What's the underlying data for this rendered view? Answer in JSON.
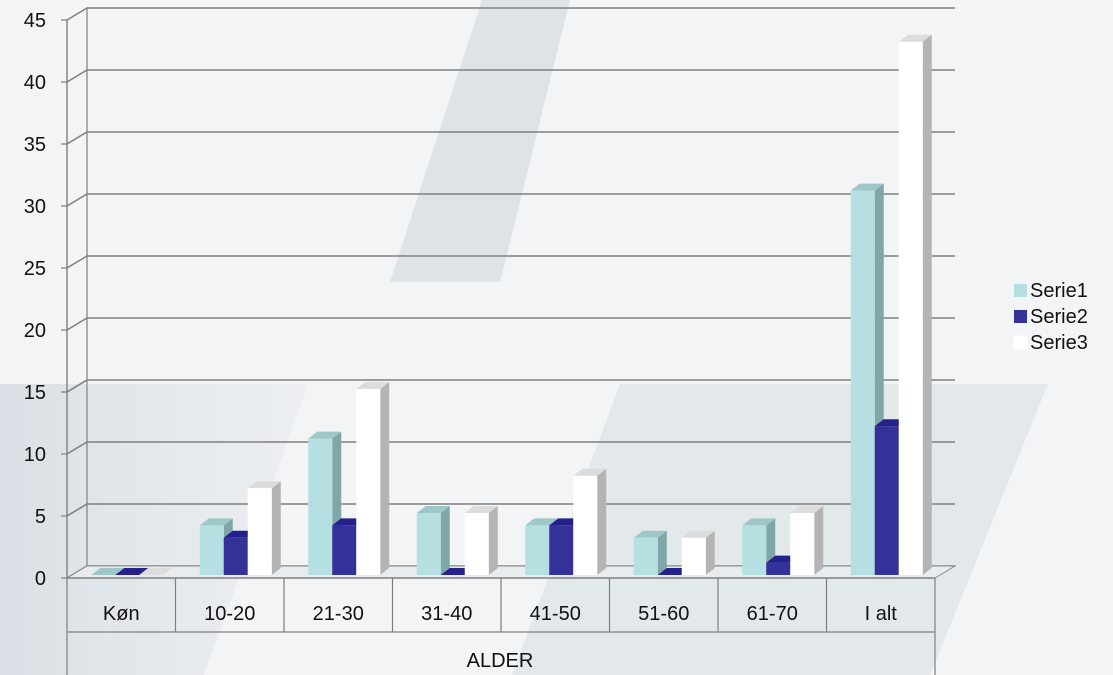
{
  "chart_data": {
    "type": "bar",
    "title": "",
    "xlabel": "ALDER",
    "ylabel": "",
    "ylim": [
      0,
      45
    ],
    "yticks": [
      0,
      5,
      10,
      15,
      20,
      25,
      30,
      35,
      40,
      45
    ],
    "categories": [
      "Køn",
      "10-20",
      "21-30",
      "31-40",
      "41-50",
      "51-60",
      "61-70",
      "I alt"
    ],
    "series": [
      {
        "name": "Serie1",
        "values": [
          0,
          4,
          11,
          5,
          4,
          3,
          4,
          31
        ]
      },
      {
        "name": "Serie2",
        "values": [
          0,
          3,
          4,
          0,
          4,
          0,
          1,
          12
        ]
      },
      {
        "name": "Serie3",
        "values": [
          0,
          7,
          15,
          5,
          8,
          3,
          5,
          43
        ]
      }
    ],
    "grid": true,
    "legend": "right",
    "three_d": true
  },
  "colors": {
    "Serie1": "#b5dfe0",
    "Serie2": "#343298",
    "Serie3": "#ffffff",
    "grid": "#7f7f7f",
    "background": "#f2f4f5"
  }
}
